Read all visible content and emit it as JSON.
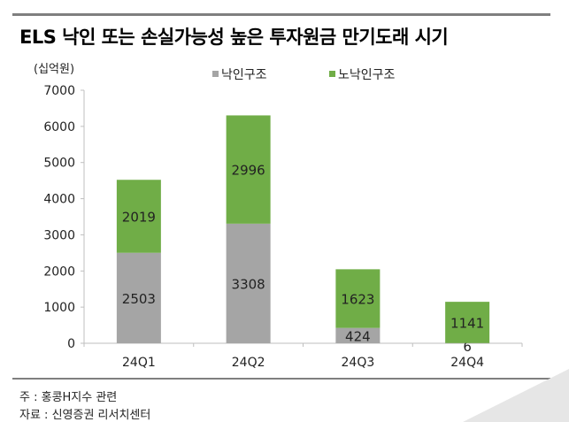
{
  "chart_data": {
    "type": "bar",
    "stacked": true,
    "title": "ELS 낙인 또는 손실가능성 높은 투자원금 만기도래 시기",
    "ylabel": "(십억원)",
    "categories": [
      "24Q1",
      "24Q2",
      "24Q3",
      "24Q4"
    ],
    "series": [
      {
        "name": "낙인구조",
        "values": [
          2503,
          3308,
          424,
          6
        ],
        "color": "#a5a5a5"
      },
      {
        "name": "노낙인구조",
        "values": [
          2019,
          2996,
          1623,
          1141
        ],
        "color": "#70ad47"
      }
    ],
    "ylim": [
      0,
      7000
    ],
    "yticks": [
      0,
      1000,
      2000,
      3000,
      4000,
      5000,
      6000,
      7000
    ],
    "grid": false,
    "legend": "top"
  },
  "footer": {
    "note": "주 : 홍콩H지수 관련",
    "source": "자료 : 신영증권 리서치센터"
  }
}
